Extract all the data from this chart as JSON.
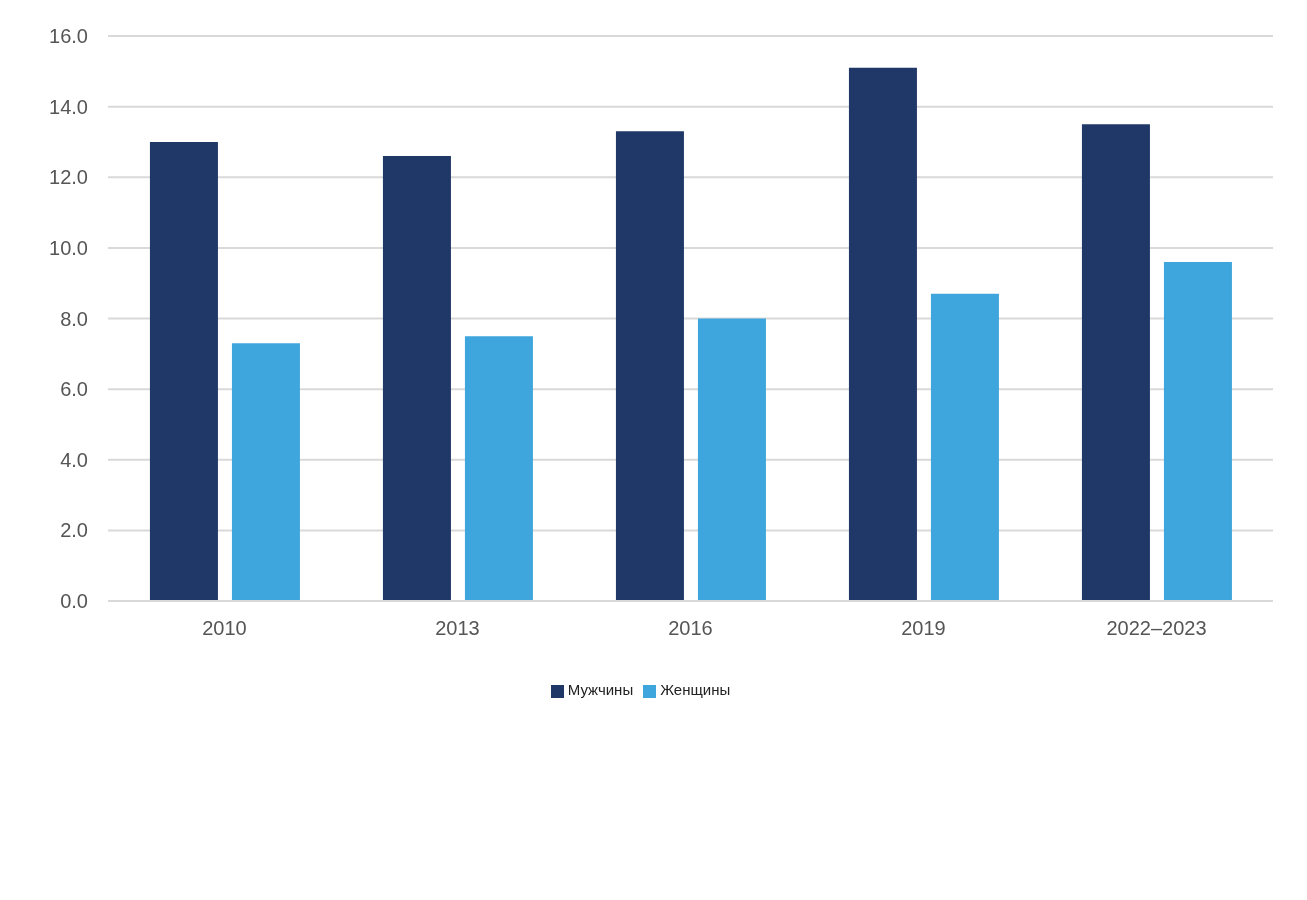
{
  "chart_data": {
    "type": "bar",
    "categories": [
      "2010",
      "2013",
      "2016",
      "2019",
      "2022–2023"
    ],
    "series": [
      {
        "name": "Мужчины",
        "color": "#1f3868",
        "values": [
          13.0,
          12.6,
          13.3,
          15.1,
          13.5
        ]
      },
      {
        "name": "Женщины",
        "color": "#3ea6dd",
        "values": [
          7.3,
          7.5,
          8.0,
          8.7,
          9.6
        ]
      }
    ],
    "ylim": [
      0,
      16
    ],
    "yticks": [
      {
        "value": 0,
        "label": "0.0"
      },
      {
        "value": 2,
        "label": "2.0"
      },
      {
        "value": 4,
        "label": "4.0"
      },
      {
        "value": 6,
        "label": "6.0"
      },
      {
        "value": 8,
        "label": "8.0"
      },
      {
        "value": 10,
        "label": "10.0"
      },
      {
        "value": 12,
        "label": "12.0"
      },
      {
        "value": 14,
        "label": "14.0"
      },
      {
        "value": 16,
        "label": "16.0"
      }
    ],
    "grid": "y",
    "legend": "bottom"
  }
}
